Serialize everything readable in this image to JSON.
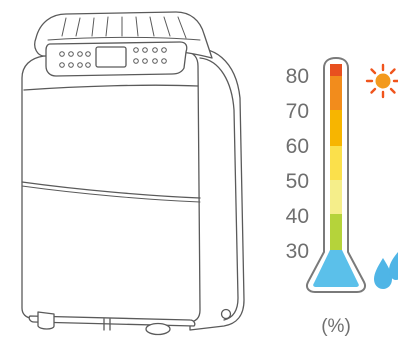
{
  "humidity_scale": {
    "labels": [
      "80",
      "70",
      "60",
      "50",
      "40",
      "30"
    ],
    "unit": "(%)",
    "band_colors": [
      "#e8501f",
      "#f28c1c",
      "#f7b500",
      "#fbe04b",
      "#f5ee8a",
      "#d7e27a",
      "#b5d33a",
      "#5bc0ea"
    ]
  },
  "icons": {
    "high_end": "sun-icon",
    "low_end": "water-drop-icon"
  }
}
